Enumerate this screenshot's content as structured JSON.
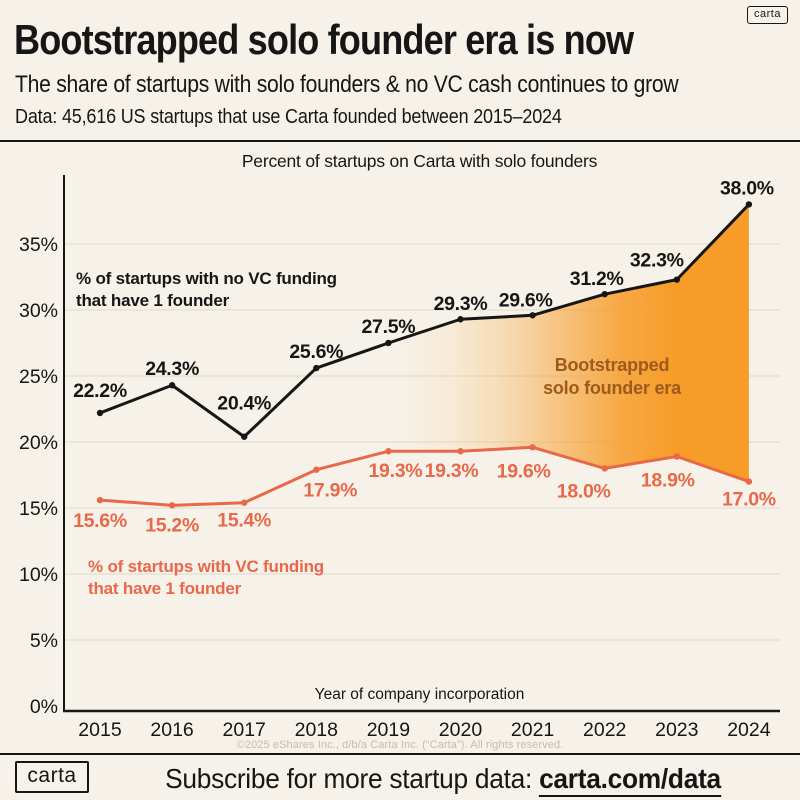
{
  "page": {
    "background": "#F7F2E9"
  },
  "header": {
    "badge": "carta",
    "title": "Bootstrapped solo founder era is now",
    "subtitle": "The share of startups with solo founders & no VC cash continues to grow",
    "data_note": "Data: 45,616 US startups that use Carta founded between 2015–2024"
  },
  "chart_data": {
    "type": "line",
    "title": "Percent of startups on Carta with solo founders",
    "xlabel": "Year of company incorporation",
    "categories": [
      "2015",
      "2016",
      "2017",
      "2018",
      "2019",
      "2020",
      "2021",
      "2022",
      "2023",
      "2024"
    ],
    "series": [
      {
        "name": "no_vc",
        "legend_line1": "% of startups with no VC funding",
        "legend_line2": "that have 1 founder",
        "color": "#161616",
        "values": [
          22.2,
          24.3,
          20.4,
          25.6,
          27.5,
          29.3,
          29.6,
          31.2,
          32.3,
          38.0
        ],
        "labels": [
          "22.2%",
          "24.3%",
          "20.4%",
          "25.6%",
          "27.5%",
          "29.3%",
          "29.6%",
          "31.2%",
          "32.3%",
          "38.0%"
        ]
      },
      {
        "name": "vc",
        "legend_line1": "% of startups with VC funding",
        "legend_line2": "that have 1 founder",
        "color": "#E8684A",
        "values": [
          15.6,
          15.2,
          15.4,
          17.9,
          19.3,
          19.3,
          19.6,
          18.0,
          18.9,
          17.0
        ],
        "labels": [
          "15.6%",
          "15.2%",
          "15.4%",
          "17.9%",
          "19.3%",
          "19.3%",
          "19.6%",
          "18.0%",
          "18.9%",
          "17.0%"
        ]
      }
    ],
    "ylim": [
      0,
      40
    ],
    "yticks": [
      {
        "value": 0,
        "label": "0%"
      },
      {
        "value": 5,
        "label": "5%"
      },
      {
        "value": 10,
        "label": "10%"
      },
      {
        "value": 15,
        "label": "15%"
      },
      {
        "value": 20,
        "label": "20%"
      },
      {
        "value": 25,
        "label": "25%"
      },
      {
        "value": 30,
        "label": "30%"
      },
      {
        "value": 35,
        "label": "35%"
      }
    ],
    "grid": true,
    "legend_position": "inline",
    "annotation": {
      "line1": "Bootstrapped",
      "line2": "solo founder era",
      "color": "#9E5A1C"
    },
    "fill_between": {
      "from_category": "2019",
      "to_category": "2024",
      "upper_series": 0,
      "lower_series": 1,
      "color": "#F79C28",
      "gradient": "transparent-left-to-solid-right"
    }
  },
  "footnote": "©2025 eShares Inc., d/b/a Carta Inc. (“Carta”). All rights reserved.",
  "footer": {
    "logo": "carta",
    "prompt": "Subscribe for more startup data: ",
    "link": "carta.com/data"
  }
}
